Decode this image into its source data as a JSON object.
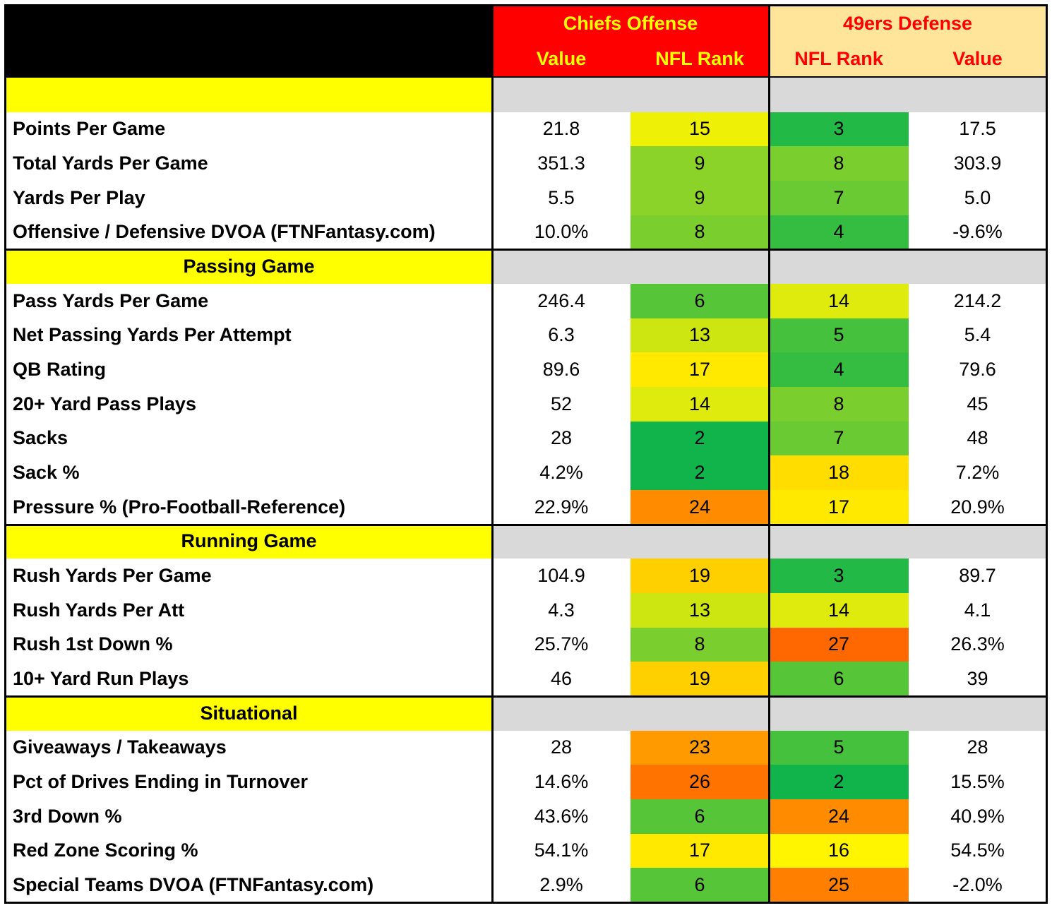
{
  "header": {
    "groups": [
      "Chiefs Offense",
      "49ers Defense"
    ],
    "columns": [
      "Value",
      "NFL Rank",
      "NFL Rank",
      "Value"
    ]
  },
  "sections": [
    {
      "rows": [
        {
          "label": "Points Per Game",
          "cells": [
            "21.8",
            15,
            3,
            "17.5"
          ]
        },
        {
          "label": "Total Yards Per Game",
          "cells": [
            "351.3",
            9,
            8,
            "303.9"
          ]
        },
        {
          "label": "Yards Per Play",
          "cells": [
            "5.5",
            9,
            7,
            "5.0"
          ]
        },
        {
          "label": "Offensive / Defensive DVOA (FTNFantasy.com)",
          "cells": [
            "10.0%",
            8,
            4,
            "-9.6%"
          ]
        }
      ]
    },
    {
      "title": "Passing Game",
      "rows": [
        {
          "label": "Pass Yards Per Game",
          "cells": [
            "246.4",
            6,
            14,
            "214.2"
          ]
        },
        {
          "label": "Net Passing Yards Per Attempt",
          "cells": [
            "6.3",
            13,
            5,
            "5.4"
          ]
        },
        {
          "label": "QB Rating",
          "cells": [
            "89.6",
            17,
            4,
            "79.6"
          ]
        },
        {
          "label": "20+ Yard Pass Plays",
          "cells": [
            "52",
            14,
            8,
            "45"
          ]
        },
        {
          "label": "Sacks",
          "cells": [
            "28",
            2,
            7,
            "48"
          ]
        },
        {
          "label": "Sack %",
          "cells": [
            "4.2%",
            2,
            18,
            "7.2%"
          ]
        },
        {
          "label": "Pressure % (Pro-Football-Reference)",
          "cells": [
            "22.9%",
            24,
            17,
            "20.9%"
          ]
        }
      ]
    },
    {
      "title": "Running Game",
      "rows": [
        {
          "label": "Rush Yards Per Game",
          "cells": [
            "104.9",
            19,
            3,
            "89.7"
          ]
        },
        {
          "label": "Rush Yards Per Att",
          "cells": [
            "4.3",
            13,
            14,
            "4.1"
          ]
        },
        {
          "label": "Rush 1st Down %",
          "cells": [
            "25.7%",
            8,
            27,
            "26.3%"
          ]
        },
        {
          "label": "10+ Yard Run Plays",
          "cells": [
            "46",
            19,
            6,
            "39"
          ]
        }
      ]
    },
    {
      "title": "Situational",
      "rows": [
        {
          "label": "Giveaways / Takeaways",
          "cells": [
            "28",
            23,
            5,
            "28"
          ]
        },
        {
          "label": "Pct of Drives Ending in Turnover",
          "cells": [
            "14.6%",
            26,
            2,
            "15.5%"
          ]
        },
        {
          "label": "3rd Down %",
          "cells": [
            "43.6%",
            6,
            24,
            "40.9%"
          ]
        },
        {
          "label": "Red Zone Scoring %",
          "cells": [
            "54.1%",
            17,
            16,
            "54.5%"
          ]
        },
        {
          "label": "Special Teams DVOA  (FTNFantasy.com)",
          "cells": [
            "2.9%",
            6,
            25,
            "-2.0%"
          ]
        }
      ]
    }
  ]
}
